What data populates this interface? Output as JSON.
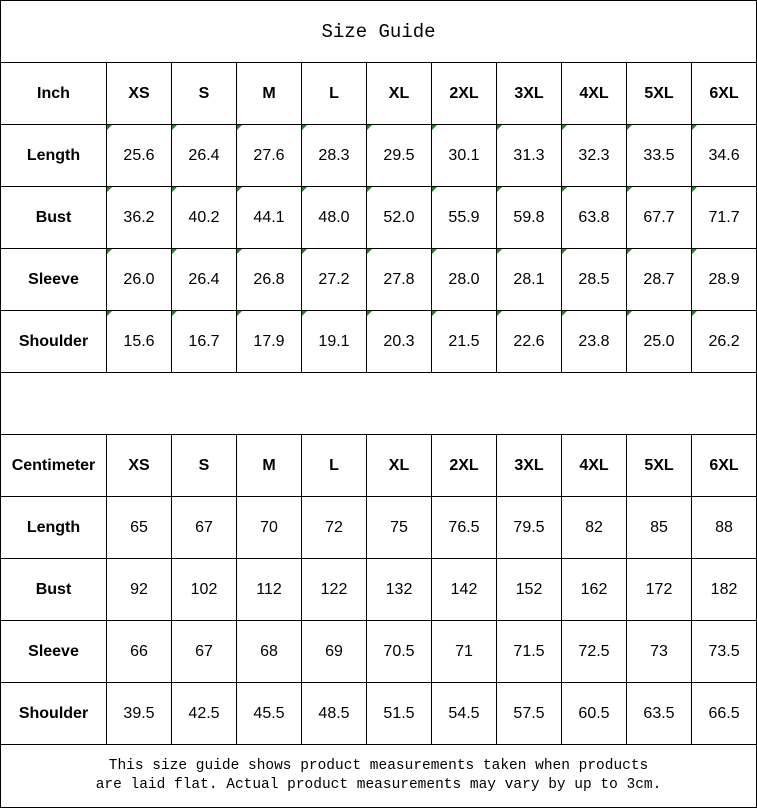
{
  "title": "Size Guide",
  "sizes": [
    "XS",
    "S",
    "M",
    "L",
    "XL",
    "2XL",
    "3XL",
    "4XL",
    "5XL",
    "6XL"
  ],
  "inch_table": {
    "unit_label": "Inch",
    "rows": [
      {
        "label": "Length",
        "values": [
          "25.6",
          "26.4",
          "27.6",
          "28.3",
          "29.5",
          "30.1",
          "31.3",
          "32.3",
          "33.5",
          "34.6"
        ]
      },
      {
        "label": "Bust",
        "values": [
          "36.2",
          "40.2",
          "44.1",
          "48.0",
          "52.0",
          "55.9",
          "59.8",
          "63.8",
          "67.7",
          "71.7"
        ]
      },
      {
        "label": "Sleeve",
        "values": [
          "26.0",
          "26.4",
          "26.8",
          "27.2",
          "27.8",
          "28.0",
          "28.1",
          "28.5",
          "28.7",
          "28.9"
        ]
      },
      {
        "label": "Shoulder",
        "values": [
          "15.6",
          "16.7",
          "17.9",
          "19.1",
          "20.3",
          "21.5",
          "22.6",
          "23.8",
          "25.0",
          "26.2"
        ]
      }
    ]
  },
  "cm_table": {
    "unit_label": "Centimeter",
    "rows": [
      {
        "label": "Length",
        "values": [
          "65",
          "67",
          "70",
          "72",
          "75",
          "76.5",
          "79.5",
          "82",
          "85",
          "88"
        ]
      },
      {
        "label": "Bust",
        "values": [
          "92",
          "102",
          "112",
          "122",
          "132",
          "142",
          "152",
          "162",
          "172",
          "182"
        ]
      },
      {
        "label": "Sleeve",
        "values": [
          "66",
          "67",
          "68",
          "69",
          "70.5",
          "71",
          "71.5",
          "72.5",
          "73",
          "73.5"
        ]
      },
      {
        "label": "Shoulder",
        "values": [
          "39.5",
          "42.5",
          "45.5",
          "48.5",
          "51.5",
          "54.5",
          "57.5",
          "60.5",
          "63.5",
          "66.5"
        ]
      }
    ]
  },
  "note_lines": [
    "This size guide shows product measurements taken when products",
    "are laid flat. Actual product measurements may vary by up to 3cm."
  ],
  "colors": {
    "text_indicator": "#1a8a1a",
    "border": "#000000"
  }
}
